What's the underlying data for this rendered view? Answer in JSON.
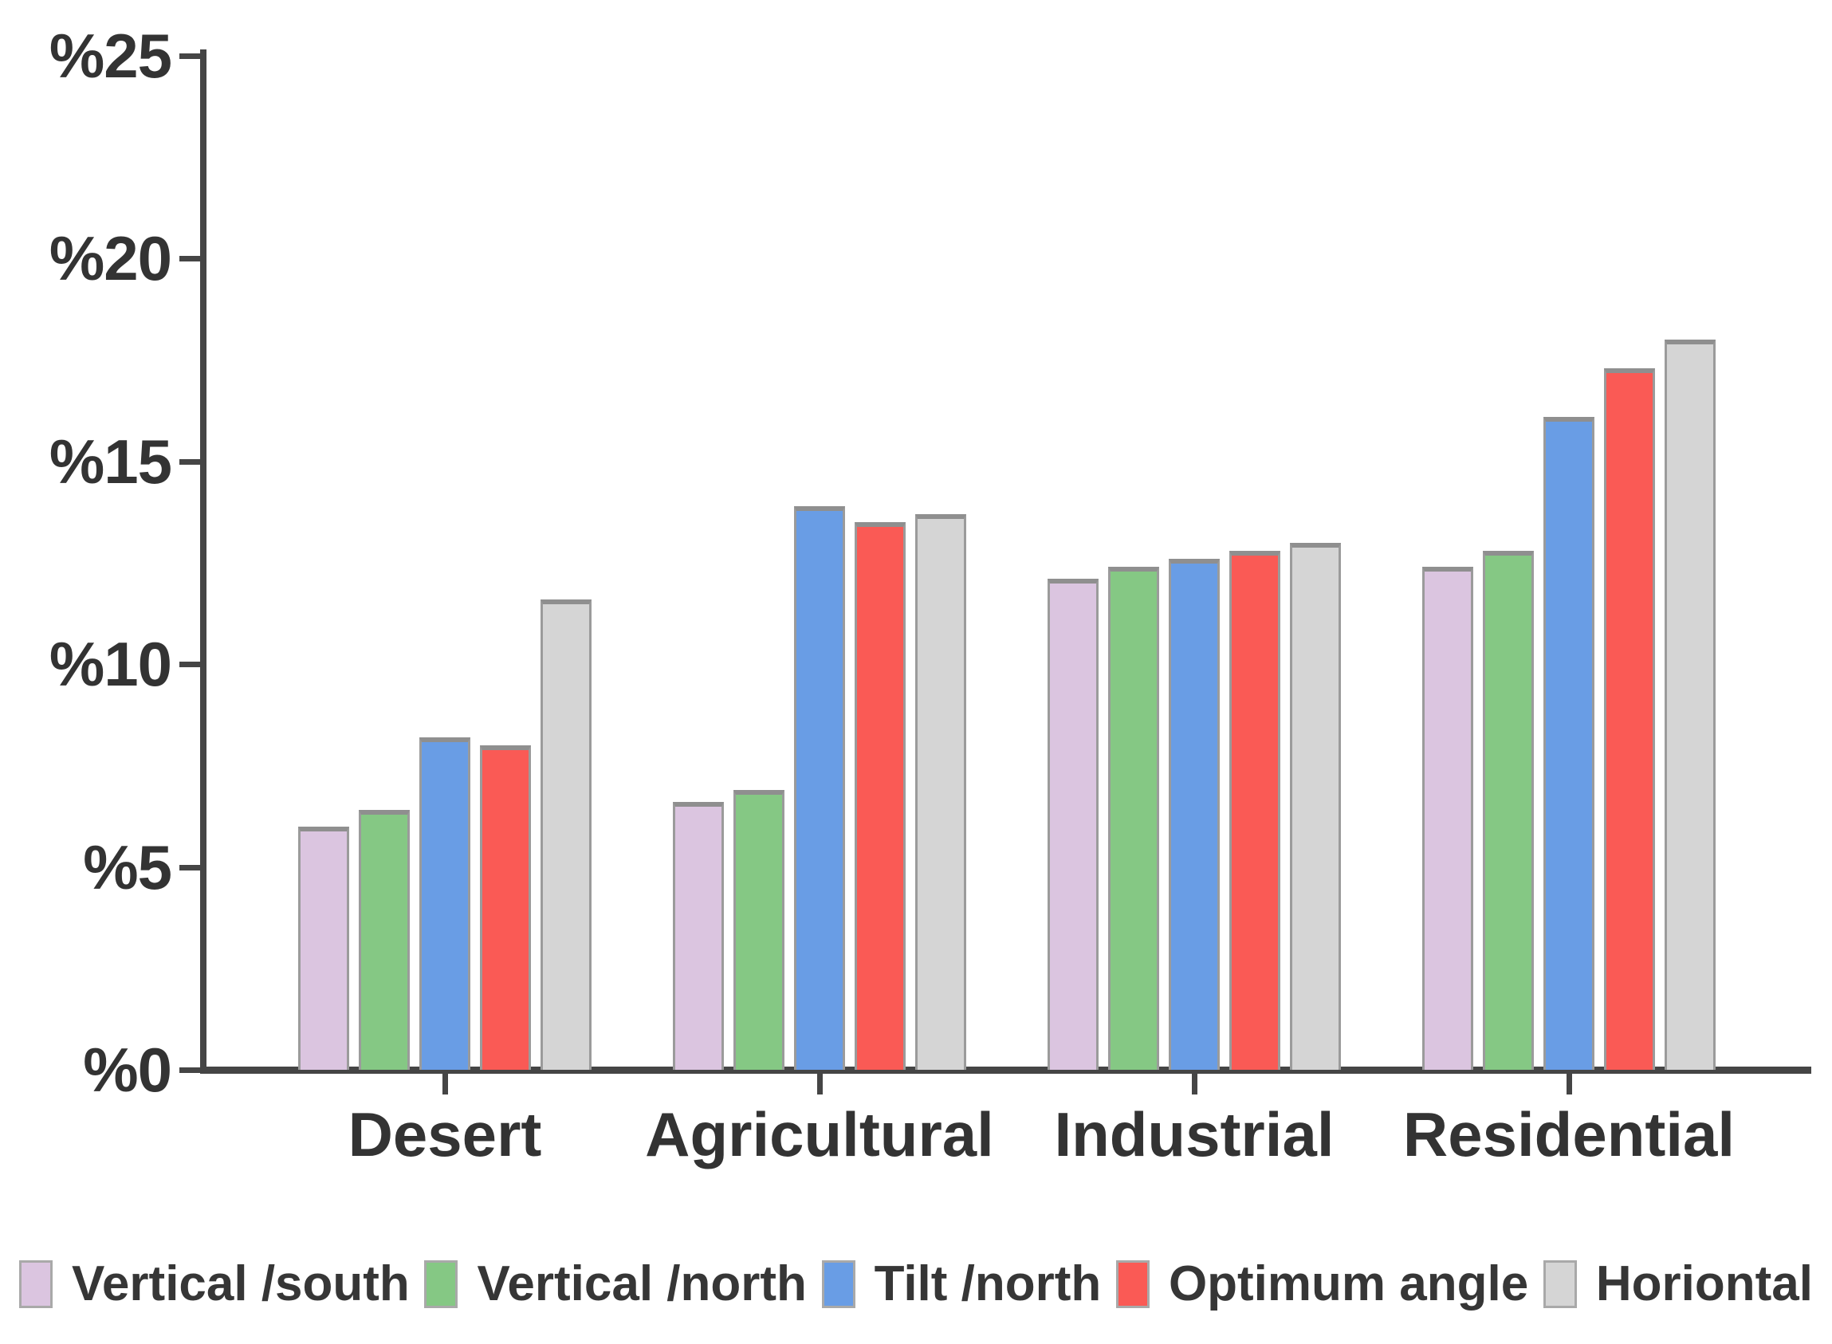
{
  "chart_data": {
    "type": "bar",
    "title": "",
    "categories": [
      "Desert",
      "Agricultural",
      "Industrial",
      "Residential"
    ],
    "series": [
      {
        "name": "Vertical /south",
        "color": "#dbc5e0",
        "values": [
          6.0,
          6.6,
          12.1,
          12.4
        ]
      },
      {
        "name": "Vertical /north",
        "color": "#85c884",
        "values": [
          6.4,
          6.9,
          12.4,
          12.8
        ]
      },
      {
        "name": "Tilt /north",
        "color": "#699de5",
        "values": [
          8.2,
          13.9,
          12.6,
          16.1
        ]
      },
      {
        "name": "Optimum angle",
        "color": "#fa5a55",
        "values": [
          8.0,
          13.5,
          12.8,
          17.3
        ]
      },
      {
        "name": "Horiontal",
        "color": "#d5d5d5",
        "values": [
          11.6,
          13.7,
          13.0,
          18.0
        ]
      }
    ],
    "ylabel": "",
    "xlabel": "",
    "ylim": [
      0,
      25
    ],
    "ytick_step": 5,
    "ytick_labels": [
      "%0",
      "%5",
      "%10",
      "%15",
      "%20",
      "%25"
    ],
    "grid": false,
    "legend_position": "bottom"
  },
  "colors": {
    "axis": "#454545",
    "text": "#333333",
    "bar_border": "#9b9b9b",
    "legend_swatch_border": "#a9a9a9",
    "background": "#ffffff"
  }
}
